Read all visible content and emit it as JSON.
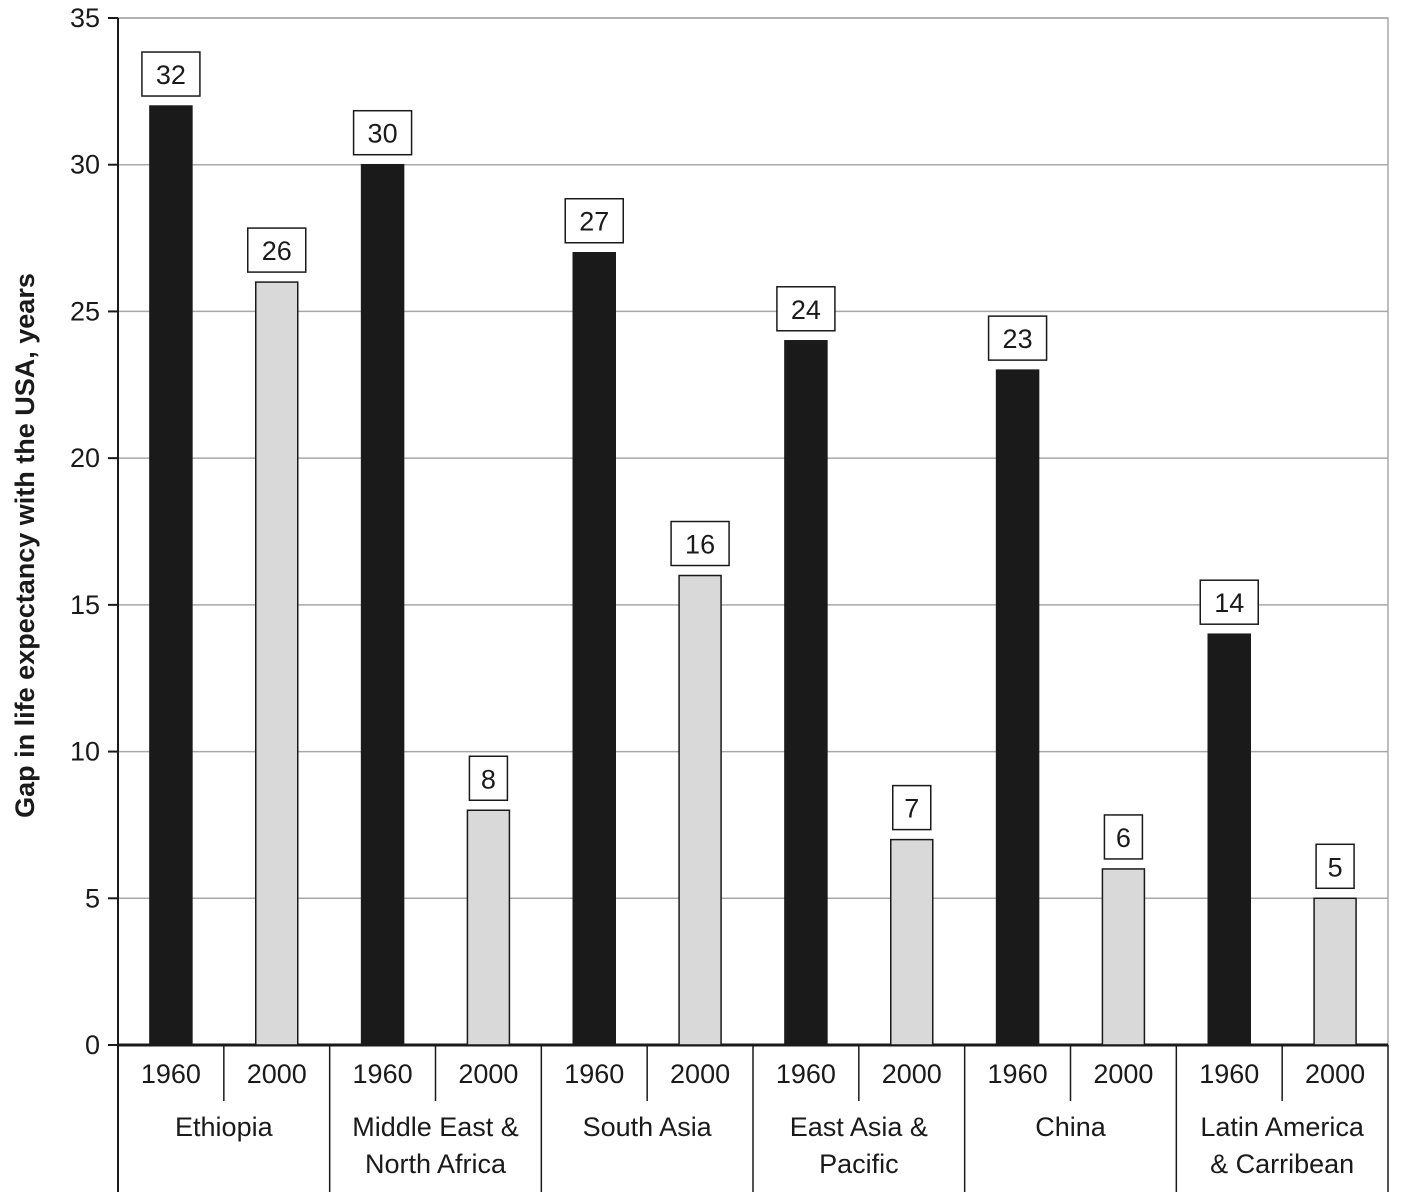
{
  "chart_data": {
    "type": "bar",
    "title": "",
    "xlabel": "",
    "ylabel": "Gap in life expectancy with the USA, years",
    "ylim": [
      0,
      35
    ],
    "yticks": [
      0,
      5,
      10,
      15,
      20,
      25,
      30,
      35
    ],
    "grid": true,
    "legend": "none",
    "groups": [
      {
        "name": "Ethiopia",
        "label_lines": [
          "Ethiopia"
        ],
        "bars": [
          {
            "year": "1960",
            "value": 32
          },
          {
            "year": "2000",
            "value": 26
          }
        ]
      },
      {
        "name": "Middle East & North Africa",
        "label_lines": [
          "Middle East &",
          "North Africa"
        ],
        "bars": [
          {
            "year": "1960",
            "value": 30
          },
          {
            "year": "2000",
            "value": 8
          }
        ]
      },
      {
        "name": "South Asia",
        "label_lines": [
          "South Asia"
        ],
        "bars": [
          {
            "year": "1960",
            "value": 27
          },
          {
            "year": "2000",
            "value": 16
          }
        ]
      },
      {
        "name": "East Asia & Pacific",
        "label_lines": [
          "East Asia &",
          "Pacific"
        ],
        "bars": [
          {
            "year": "1960",
            "value": 24
          },
          {
            "year": "2000",
            "value": 7
          }
        ]
      },
      {
        "name": "China",
        "label_lines": [
          "China"
        ],
        "bars": [
          {
            "year": "1960",
            "value": 23
          },
          {
            "year": "2000",
            "value": 6
          }
        ]
      },
      {
        "name": "Latin America & Carribean",
        "label_lines": [
          "Latin America",
          "& Carribean"
        ],
        "bars": [
          {
            "year": "1960",
            "value": 14
          },
          {
            "year": "2000",
            "value": 5
          }
        ]
      }
    ],
    "colors": {
      "1960": "#1a1a1a",
      "2000": "#d9d9d9",
      "grid": "#a8a8a8",
      "axis": "#1a1a1a"
    }
  }
}
